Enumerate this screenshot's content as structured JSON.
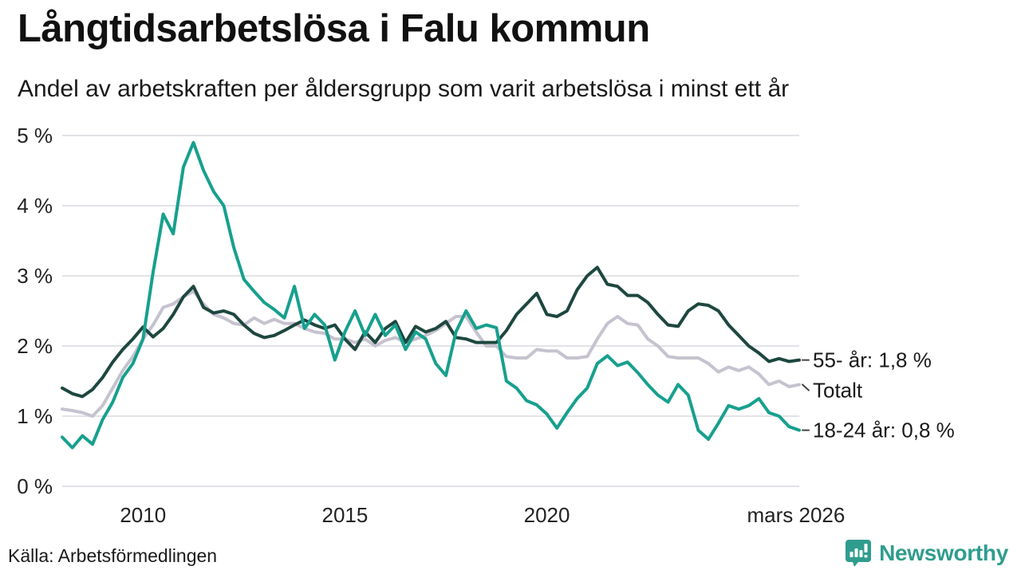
{
  "header": {
    "title": "Långtidsarbetslösa i Falu kommun",
    "subtitle": "Andel av arbetskraften per åldersgrupp som varit arbetslösa i minst ett år"
  },
  "footer": {
    "source": "Källa: Arbetsförmedlingen",
    "brand": "Newsworthy"
  },
  "colors": {
    "teal": "#17a08e",
    "dark_green": "#1d473f",
    "gray": "#c6c2cf",
    "grid": "#e3e2e7",
    "axis_text": "#222222",
    "label_text": "#1a1a1a",
    "connector": "#444444",
    "brand_teal": "#2f9d8e"
  },
  "chart_data": {
    "type": "line",
    "title": "Långtidsarbetslösa i Falu kommun",
    "subtitle": "Andel av arbetskraften per åldersgrupp som varit arbetslösa i minst ett år",
    "xlabel": "",
    "ylabel": "",
    "xlim": [
      2008,
      2026.25
    ],
    "ylim": [
      0,
      5
    ],
    "grid": "horizontal",
    "legend_position": "end-of-line-labels",
    "y_ticks": [
      {
        "value": 0,
        "label": "0 %"
      },
      {
        "value": 1,
        "label": "1 %"
      },
      {
        "value": 2,
        "label": "2 %"
      },
      {
        "value": 3,
        "label": "3 %"
      },
      {
        "value": 4,
        "label": "4 %"
      },
      {
        "value": 5,
        "label": "5 %"
      }
    ],
    "x_ticks": [
      {
        "value": 2010,
        "label": "2010"
      },
      {
        "value": 2015,
        "label": "2015"
      },
      {
        "value": 2020,
        "label": "2020"
      },
      {
        "value": 2026.17,
        "label": "mars 2026"
      }
    ],
    "x": [
      2008,
      2008.25,
      2008.5,
      2008.75,
      2009,
      2009.25,
      2009.5,
      2009.75,
      2010,
      2010.25,
      2010.5,
      2010.75,
      2011,
      2011.25,
      2011.5,
      2011.75,
      2012,
      2012.25,
      2012.5,
      2012.75,
      2013,
      2013.25,
      2013.5,
      2013.75,
      2014,
      2014.25,
      2014.5,
      2014.75,
      2015,
      2015.25,
      2015.5,
      2015.75,
      2016,
      2016.25,
      2016.5,
      2016.75,
      2017,
      2017.25,
      2017.5,
      2017.75,
      2018,
      2018.25,
      2018.5,
      2018.75,
      2019,
      2019.25,
      2019.5,
      2019.75,
      2020,
      2020.25,
      2020.5,
      2020.75,
      2021,
      2021.25,
      2021.5,
      2021.75,
      2022,
      2022.25,
      2022.5,
      2022.75,
      2023,
      2023.25,
      2023.5,
      2023.75,
      2024,
      2024.25,
      2024.5,
      2024.75,
      2025,
      2025.25,
      2025.5,
      2025.75,
      2026,
      2026.25
    ],
    "series": [
      {
        "name": "Totalt",
        "label": "Totalt",
        "color": "#c6c2cf",
        "end_value": null,
        "values": [
          1.1,
          1.08,
          1.05,
          1.0,
          1.15,
          1.4,
          1.65,
          1.85,
          2.1,
          2.3,
          2.55,
          2.6,
          2.7,
          2.78,
          2.6,
          2.45,
          2.4,
          2.32,
          2.3,
          2.4,
          2.32,
          2.38,
          2.32,
          2.32,
          2.25,
          2.2,
          2.18,
          2.1,
          2.1,
          2.05,
          2.1,
          2.0,
          2.08,
          2.12,
          2.05,
          2.1,
          2.15,
          2.22,
          2.32,
          2.42,
          2.42,
          2.2,
          2.0,
          2.0,
          1.85,
          1.83,
          1.83,
          1.95,
          1.93,
          1.93,
          1.83,
          1.83,
          1.85,
          2.1,
          2.32,
          2.42,
          2.32,
          2.3,
          2.1,
          2.0,
          1.85,
          1.83,
          1.83,
          1.83,
          1.75,
          1.63,
          1.7,
          1.65,
          1.7,
          1.6,
          1.45,
          1.5,
          1.42,
          1.45
        ]
      },
      {
        "name": "55- år",
        "label": "55- år: 1,8 %",
        "color": "#1d473f",
        "end_value": "1,8 %",
        "values": [
          1.4,
          1.32,
          1.28,
          1.38,
          1.55,
          1.77,
          1.95,
          2.1,
          2.27,
          2.13,
          2.25,
          2.45,
          2.7,
          2.85,
          2.55,
          2.47,
          2.5,
          2.45,
          2.3,
          2.18,
          2.12,
          2.15,
          2.22,
          2.3,
          2.37,
          2.3,
          2.25,
          2.3,
          2.1,
          1.95,
          2.2,
          2.05,
          2.25,
          2.35,
          2.05,
          2.28,
          2.2,
          2.25,
          2.35,
          2.12,
          2.1,
          2.05,
          2.05,
          2.05,
          2.22,
          2.45,
          2.6,
          2.75,
          2.45,
          2.42,
          2.5,
          2.8,
          3.0,
          3.12,
          2.88,
          2.85,
          2.72,
          2.72,
          2.62,
          2.45,
          2.3,
          2.28,
          2.5,
          2.6,
          2.58,
          2.5,
          2.3,
          2.15,
          2.0,
          1.9,
          1.78,
          1.82,
          1.78,
          1.8
        ]
      },
      {
        "name": "18-24 år",
        "label": "18-24 år: 0,8 %",
        "color": "#17a08e",
        "end_value": "0,8 %",
        "values": [
          0.7,
          0.55,
          0.72,
          0.6,
          0.95,
          1.2,
          1.55,
          1.75,
          2.1,
          3.05,
          3.88,
          3.6,
          4.55,
          4.9,
          4.5,
          4.2,
          4.0,
          3.4,
          2.95,
          2.78,
          2.62,
          2.52,
          2.4,
          2.85,
          2.25,
          2.45,
          2.3,
          1.8,
          2.2,
          2.5,
          2.15,
          2.45,
          2.15,
          2.3,
          1.95,
          2.2,
          2.1,
          1.75,
          1.58,
          2.2,
          2.5,
          2.25,
          2.3,
          2.26,
          1.5,
          1.4,
          1.22,
          1.16,
          1.03,
          0.83,
          1.05,
          1.25,
          1.4,
          1.75,
          1.86,
          1.72,
          1.77,
          1.62,
          1.45,
          1.3,
          1.2,
          1.45,
          1.3,
          0.8,
          0.67,
          0.9,
          1.15,
          1.1,
          1.15,
          1.25,
          1.05,
          1.0,
          0.85,
          0.8
        ]
      }
    ]
  }
}
